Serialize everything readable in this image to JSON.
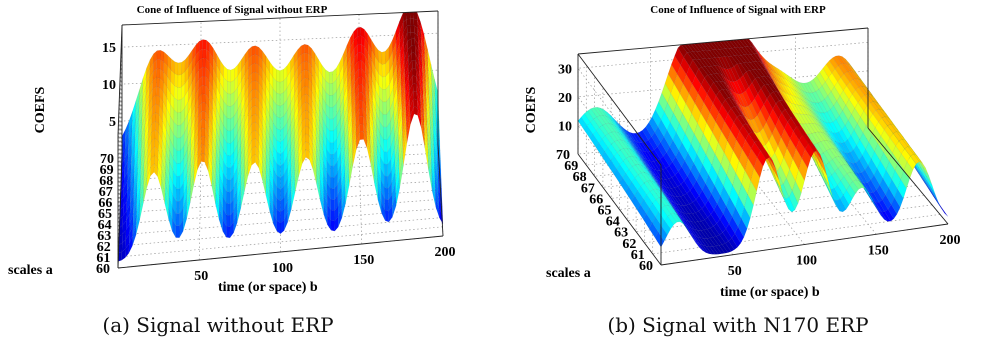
{
  "colormap": [
    "#00008f",
    "#0000ff",
    "#0080ff",
    "#00ffff",
    "#80ff80",
    "#ffff00",
    "#ff8000",
    "#ff0000",
    "#800000"
  ],
  "chart_data": [
    {
      "type": "surface",
      "title": "Cone of Influence of Signal without ERP",
      "caption": "(a) Signal without ERP",
      "xlabel": "time (or space) b",
      "ylabel": "scales a",
      "zlabel": "COEFS",
      "xlim": [
        0,
        200
      ],
      "ylim": [
        60,
        70
      ],
      "zlim": [
        0,
        18
      ],
      "xticks": [
        50,
        100,
        150,
        200
      ],
      "yticks": [
        60,
        61,
        62,
        63,
        64,
        65,
        66,
        67,
        68,
        69,
        70
      ],
      "zticks": [
        5,
        10,
        15
      ],
      "grid": true,
      "peaks_b": [
        22,
        52,
        84,
        116,
        150,
        183
      ],
      "peak_values": [
        13,
        14,
        13,
        13,
        15,
        18
      ],
      "peak_width": 11
    },
    {
      "type": "surface",
      "title": "Cone of Influence of Signal with ERP",
      "caption": "(b) Signal with N170 ERP",
      "xlabel": "time (or space) b",
      "ylabel": "scales a",
      "zlabel": "COEFS",
      "xlim": [
        0,
        200
      ],
      "ylim": [
        60,
        70
      ],
      "zlim": [
        0,
        35
      ],
      "xticks": [
        50,
        100,
        150,
        200
      ],
      "yticks": [
        60,
        61,
        62,
        63,
        64,
        65,
        66,
        67,
        68,
        69,
        70
      ],
      "zticks": [
        10,
        20,
        30
      ],
      "grid": true,
      "peaks_b": [
        12,
        75,
        108,
        140,
        180
      ],
      "peak_values": [
        15,
        35,
        35,
        18,
        25
      ],
      "peak_width": 14
    }
  ]
}
